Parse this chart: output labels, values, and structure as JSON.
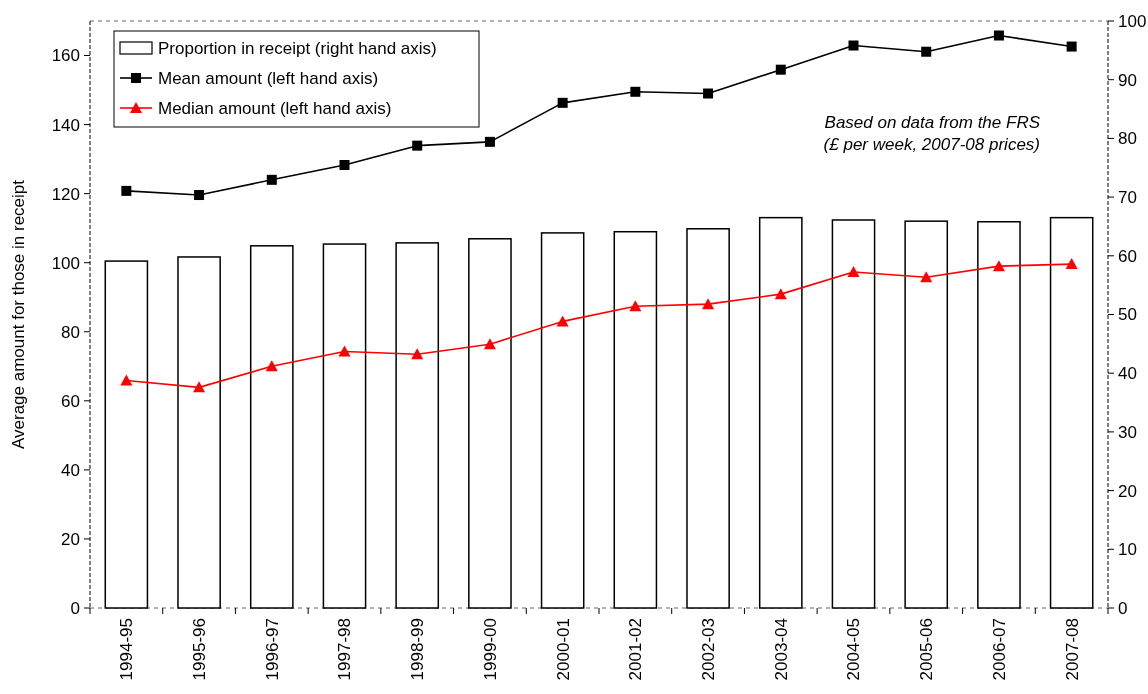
{
  "chart_data": {
    "type": "bar",
    "ylabel": "Average amount for those in receipt",
    "categories": [
      "1994-95",
      "1995-96",
      "1996-97",
      "1997-98",
      "1998-99",
      "1999-00",
      "2000-01",
      "2001-02",
      "2002-03",
      "2003-04",
      "2004-05",
      "2005-06",
      "2006-07",
      "2007-08"
    ],
    "series": [
      {
        "name": "Proportion in receipt (right hand axis)",
        "axis": "y2",
        "color": "#ffffff",
        "values": [
          59.1,
          59.8,
          61.7,
          62.0,
          62.2,
          62.9,
          63.9,
          64.1,
          64.6,
          66.5,
          66.1,
          65.9,
          65.8,
          66.5
        ]
      },
      {
        "name": "Mean amount (left hand axis)",
        "type": "line",
        "marker": "square",
        "color": "#000000",
        "values": [
          120.8,
          119.6,
          124.0,
          128.3,
          133.9,
          135.0,
          146.3,
          149.5,
          149.0,
          155.9,
          162.9,
          161.1,
          165.8,
          162.6
        ]
      },
      {
        "name": "Median amount (left hand axis)",
        "type": "line",
        "marker": "triangle",
        "color": "#ff0000",
        "values": [
          65.9,
          63.9,
          70.0,
          74.3,
          73.5,
          76.4,
          83.0,
          87.4,
          88.0,
          90.9,
          97.3,
          95.8,
          99.0,
          99.6
        ]
      }
    ],
    "ylim": [
      0,
      170
    ],
    "yticks": [
      0,
      20,
      40,
      60,
      80,
      100,
      120,
      140,
      160
    ],
    "y2lim": [
      0,
      100
    ],
    "y2ticks": [
      0,
      10,
      20,
      30,
      40,
      50,
      60,
      70,
      80,
      90,
      100
    ],
    "legend": "top left",
    "grid": false,
    "annotations": [
      "Based on data from the FRS\n(£ per week, 2007-08 prices)"
    ]
  }
}
